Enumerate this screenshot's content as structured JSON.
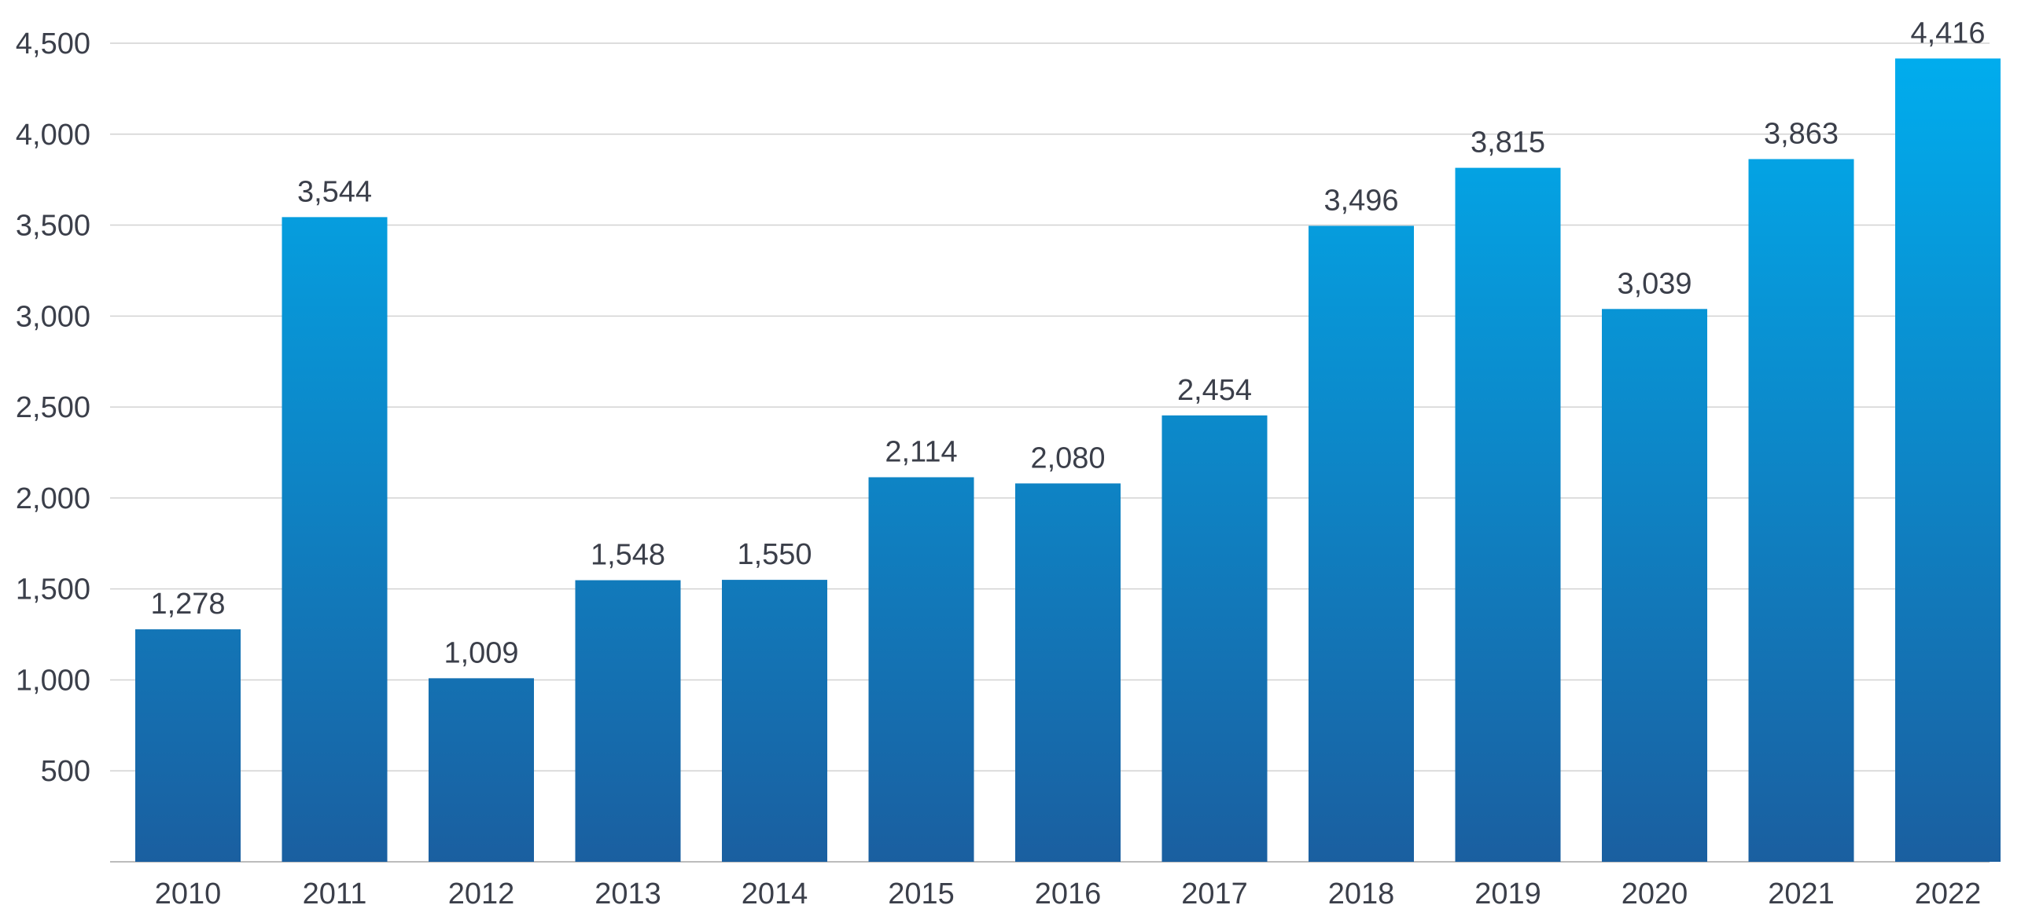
{
  "chart_data": {
    "type": "bar",
    "categories": [
      "2010",
      "2011",
      "2012",
      "2013",
      "2014",
      "2015",
      "2016",
      "2017",
      "2018",
      "2019",
      "2020",
      "2021",
      "2022"
    ],
    "values": [
      1278,
      3544,
      1009,
      1548,
      1550,
      2114,
      2080,
      2454,
      3496,
      3815,
      3039,
      3863,
      4416
    ],
    "value_labels": [
      "1,278",
      "3,544",
      "1,009",
      "1,548",
      "1,550",
      "2,114",
      "2,080",
      "2,454",
      "3,496",
      "3,815",
      "3,039",
      "3,863",
      "4,416"
    ],
    "y_ticks": [
      500,
      1000,
      1500,
      2000,
      2500,
      3000,
      3500,
      4000,
      4500
    ],
    "y_tick_labels": [
      "500",
      "1,000",
      "1,500",
      "2,000",
      "2,500",
      "3,000",
      "3,500",
      "4,000",
      "4,500"
    ],
    "ylim": [
      0,
      4500
    ],
    "title": "",
    "xlabel": "",
    "ylabel": "",
    "grid": true,
    "legend": "none",
    "colors": {
      "bar_top": "#00aeef",
      "bar_bottom": "#1a5fa0",
      "text": "#3b3f4a",
      "grid": "#d2d2d2"
    }
  }
}
